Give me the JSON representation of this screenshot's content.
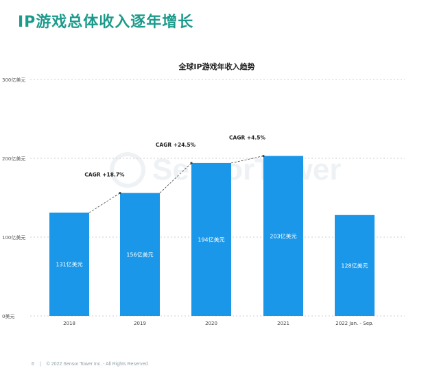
{
  "page_title": "IP游戏总体收入逐年增长",
  "watermark": "SensorTower",
  "footer": {
    "page_number": "6",
    "separator": "|",
    "copyright": "© 2022 Sensor Tower Inc. - All Rights Reserved"
  },
  "colors": {
    "title": "#1c9b8c",
    "bar": "#1a97e8",
    "bar_label": "#ffffff",
    "connector": "#444444",
    "grid": "#c8cdd2"
  },
  "chart_data": {
    "type": "bar",
    "title": "全球IP游戏年收入趋势",
    "categories": [
      "2018",
      "2019",
      "2020",
      "2021",
      "2022 Jan. - Sep."
    ],
    "values": [
      131,
      156,
      194,
      203,
      128
    ],
    "value_labels": [
      "131亿美元",
      "156亿美元",
      "194亿美元",
      "203亿美元",
      "128亿美元"
    ],
    "y_ticks": [
      {
        "value": 0,
        "label": "0美元"
      },
      {
        "value": 100,
        "label": "100亿美元"
      },
      {
        "value": 200,
        "label": "200亿美元"
      },
      {
        "value": 300,
        "label": "300亿美元"
      }
    ],
    "ylim": [
      0,
      300
    ],
    "grid": true,
    "annotations": [
      {
        "from": 0,
        "to": 1,
        "label": "CAGR +18.7%"
      },
      {
        "from": 1,
        "to": 2,
        "label": "CAGR +24.5%"
      },
      {
        "from": 2,
        "to": 3,
        "label": "CAGR +4.5%"
      }
    ]
  }
}
